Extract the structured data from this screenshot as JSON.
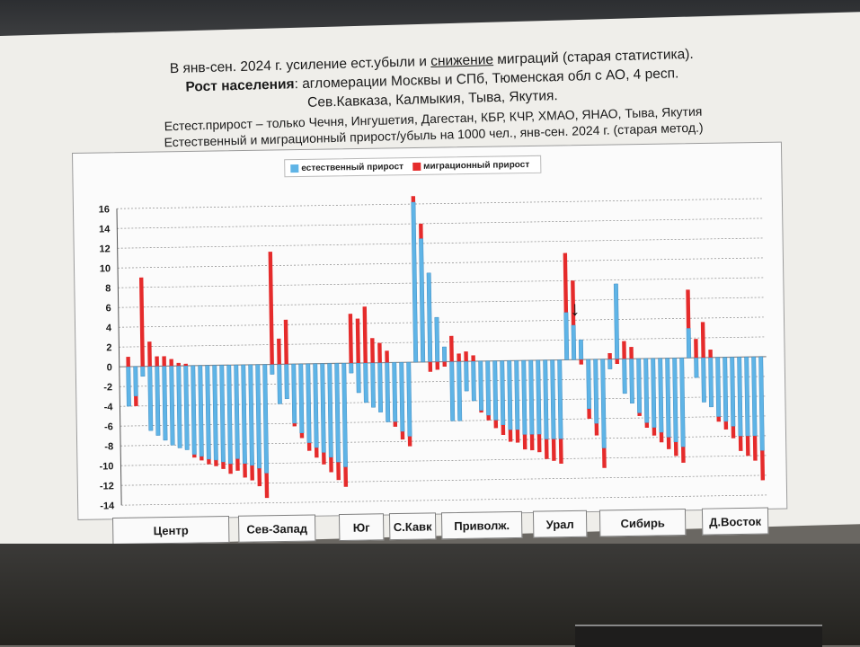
{
  "title_lines": {
    "line1_pre": "В янв-сен. 2024 г. усиление ест.убыли и ",
    "line1_underlined": "снижение",
    "line1_post": " миграций (старая статистика).",
    "line2_bold": "Рост населения",
    "line2_rest": ": агломерации Москвы и СПб, Тюменская обл с АО, 4 респ.",
    "line3": "Сев.Кавказа, Калмыкия, Тыва, Якутия.",
    "line4": "Естест.прирост – только Чечня, Ингушетия, Дагестан, КБР, КЧР, ХМАО, ЯНАО, Тыва, Якутия",
    "line5": "Естественный и миграционный прирост/убыль на 1000 чел., янв-сен. 2024 г. (старая метод.)"
  },
  "colors": {
    "natural": "#5fb4e6",
    "natural_edge": "#2f7fb8",
    "migration": "#e52b2b",
    "grid": "#8a8a8a"
  },
  "chart_data": {
    "type": "bar",
    "legend": [
      "естественный прирост",
      "миграционный прирост"
    ],
    "ylim": [
      -14,
      16
    ],
    "yticks": [
      16,
      14,
      12,
      10,
      8,
      6,
      4,
      2,
      0,
      -2,
      -4,
      -6,
      -8,
      -10,
      -12,
      -14
    ],
    "grid": true,
    "legend_position": "top-center",
    "series": [
      {
        "name": "естественный прирост",
        "values": [
          -4.0,
          -3.0,
          -1.0,
          -6.5,
          -7.0,
          -7.5,
          -8.0,
          -8.3,
          -8.5,
          -9.0,
          -9.2,
          -9.5,
          -9.6,
          -9.8,
          -10.0,
          -9.5,
          -10.0,
          -10.2,
          -10.5,
          -11.0,
          -1.0,
          -4.0,
          -3.5,
          -6.0,
          -7.0,
          -8.0,
          -8.5,
          -9.0,
          -9.5,
          -10.0,
          -10.5,
          -1.0,
          -3.0,
          -4.0,
          -4.5,
          -5.0,
          -6.0,
          -6.0,
          -7.0,
          -7.5,
          16.2,
          12.5,
          9.0,
          4.5,
          1.5,
          -6.0,
          -6.0,
          -3.0,
          -4.0,
          -5.0,
          -5.5,
          -6.0,
          -6.5,
          -7.0,
          -7.0,
          -7.5,
          -7.5,
          -7.5,
          -8.0,
          -8.0,
          -8.0,
          4.8,
          3.5,
          2.0,
          -5.0,
          -6.5,
          -9.0,
          -1.0,
          7.6,
          -3.5,
          -4.5,
          -5.5,
          -6.5,
          -7.0,
          -7.5,
          -8.0,
          -8.5,
          -9.0,
          3.0,
          -2.0,
          -4.5,
          -5.0,
          -6.0,
          -6.5,
          -7.0,
          -8.0,
          -8.0,
          -8.0,
          -9.5
        ],
        "values_migration": [
          1.0,
          -1.0,
          9.0,
          2.5,
          1.0,
          1.0,
          0.7,
          0.3,
          0.2,
          -0.3,
          -0.4,
          -0.5,
          -0.6,
          -0.7,
          -1.0,
          -1.2,
          -1.4,
          -1.5,
          -1.8,
          -2.5,
          11.4,
          2.6,
          4.5,
          -0.3,
          -0.5,
          -0.8,
          -1.0,
          -1.2,
          -1.5,
          -1.8,
          -2.0,
          5.0,
          4.5,
          5.7,
          2.5,
          2.0,
          1.2,
          -0.5,
          -0.8,
          -1.0,
          0.6,
          1.5,
          -1.0,
          -0.8,
          -0.5,
          2.6,
          0.8,
          1.0,
          0.6,
          -0.2,
          -0.5,
          -0.8,
          -1.0,
          -1.2,
          -1.3,
          -1.5,
          -1.6,
          -1.8,
          -2.0,
          -2.2,
          -2.5,
          6.0,
          4.5,
          -0.5,
          -1.0,
          -1.2,
          -2.0,
          0.6,
          -0.5,
          1.8,
          1.2,
          -0.3,
          -0.5,
          -0.8,
          -1.0,
          -1.2,
          -1.4,
          -1.6,
          3.9,
          1.9,
          3.6,
          0.8,
          -0.5,
          -0.8,
          -1.2,
          -1.5,
          -2.0,
          -2.5,
          -3.0
        ]
      },
      {
        "name": "миграционный прирост"
      }
    ],
    "region_groups": [
      "Центр",
      "Сев-Запад",
      "Юг",
      "С.Кавк",
      "Приволж.",
      "Урал",
      "Сибирь",
      "Д.Восток"
    ],
    "annotations": [
      "↓"
    ]
  }
}
